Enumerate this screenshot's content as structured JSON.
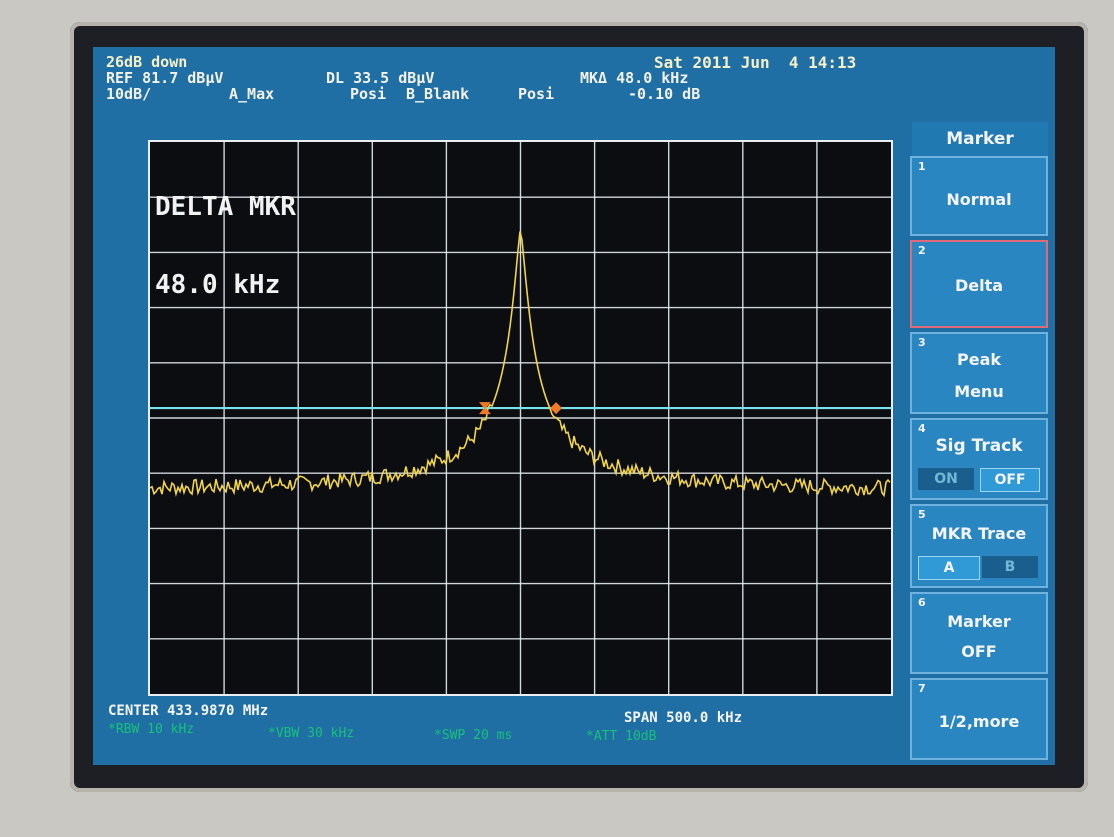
{
  "header": {
    "line1_left": "26dB down",
    "line2_ref": "REF 81.7 dBµV",
    "line2_dl": "DL 33.5 dBµV",
    "line2_mk": "MKΔ 48.0 kHz",
    "line3_scale": "10dB/",
    "line3_a": "A_Max",
    "line3_posi1": "Posi",
    "line3_b": "B_Blank",
    "line3_posi2": "Posi",
    "line3_mkval": "-0.10 dB",
    "datetime": "Sat 2011 Jun  4 14:13"
  },
  "overlay": {
    "title": "DELTA MKR",
    "value": "48.0 kHz"
  },
  "footer": {
    "center": "CENTER 433.9870 MHz",
    "span": "SPAN 500.0 kHz",
    "rbw": "*RBW 10 kHz",
    "vbw": "*VBW 30 kHz",
    "swp": "*SWP 20 ms",
    "att": "*ATT 10dB"
  },
  "panel": {
    "title": "Marker",
    "keys": [
      {
        "num": "1",
        "label": "Normal"
      },
      {
        "num": "2",
        "label": "Delta"
      },
      {
        "num": "3",
        "label_top": "Peak",
        "label_bottom": "Menu"
      },
      {
        "num": "4",
        "label": "Sig Track",
        "on": "ON",
        "off": "OFF"
      },
      {
        "num": "5",
        "label": "MKR Trace",
        "a": "A",
        "b": "B"
      },
      {
        "num": "6",
        "label_top": "Marker",
        "label_bottom": "OFF"
      },
      {
        "num": "7",
        "label": "1/2,more"
      }
    ]
  },
  "colors": {
    "trace": "#f0d44a",
    "display_line": "#79e3ec",
    "marker": "#f07a2a",
    "grid": "#e6edf2",
    "screen_bg": "#1f6fa5"
  },
  "trace": {
    "noise_floor_db": 18.5,
    "peak_db": 61.0,
    "display_line_dbuv": 33.5,
    "marker1_khz": -24,
    "marker2_khz": 24
  }
}
